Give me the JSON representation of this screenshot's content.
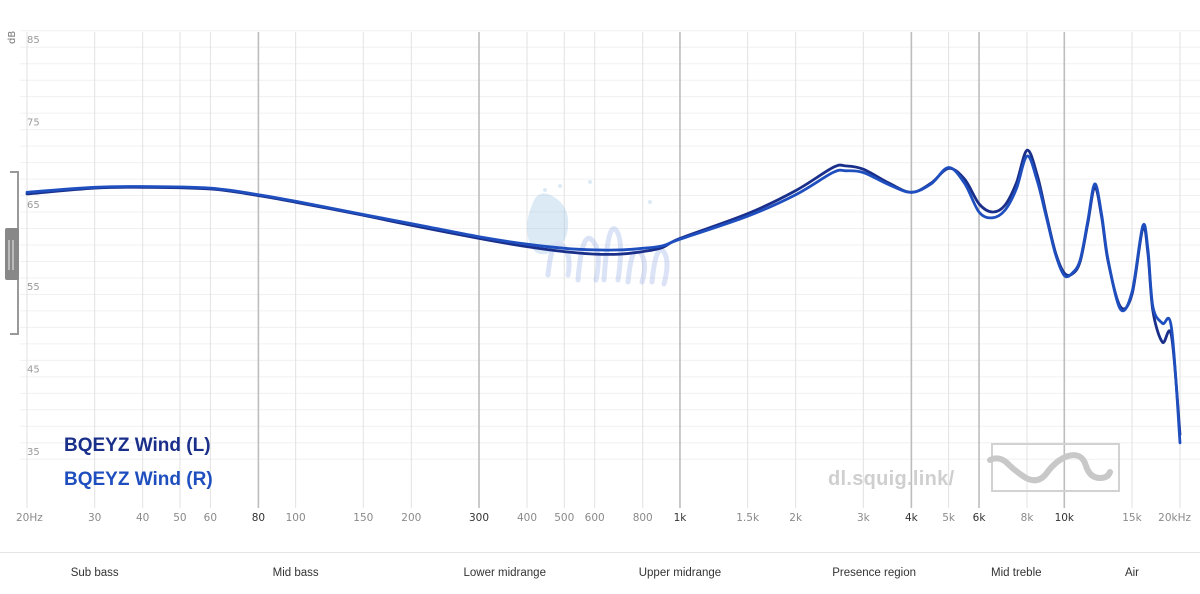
{
  "chart_data": {
    "type": "line",
    "title": "",
    "xlabel": "",
    "ylabel": "dB",
    "x_scale": "log",
    "xlim": [
      20,
      20000
    ],
    "ylim": [
      32,
      86
    ],
    "y_ticks": [
      {
        "value": 85,
        "label": "85"
      },
      {
        "value": 75,
        "label": "75"
      },
      {
        "value": 65,
        "label": "65"
      },
      {
        "value": 55,
        "label": "55"
      },
      {
        "value": 45,
        "label": "45"
      },
      {
        "value": 35,
        "label": "35"
      }
    ],
    "x_ticks": [
      {
        "value": 20,
        "label": "20Hz"
      },
      {
        "value": 30,
        "label": "30"
      },
      {
        "value": 40,
        "label": "40"
      },
      {
        "value": 50,
        "label": "50"
      },
      {
        "value": 60,
        "label": "60"
      },
      {
        "value": 80,
        "label": "80",
        "major": true
      },
      {
        "value": 100,
        "label": "100"
      },
      {
        "value": 150,
        "label": "150"
      },
      {
        "value": 200,
        "label": "200"
      },
      {
        "value": 300,
        "label": "300",
        "major": true
      },
      {
        "value": 400,
        "label": "400"
      },
      {
        "value": 500,
        "label": "500"
      },
      {
        "value": 600,
        "label": "600"
      },
      {
        "value": 800,
        "label": "800"
      },
      {
        "value": 1000,
        "label": "1k",
        "major": true
      },
      {
        "value": 1500,
        "label": "1.5k"
      },
      {
        "value": 2000,
        "label": "2k"
      },
      {
        "value": 3000,
        "label": "3k"
      },
      {
        "value": 4000,
        "label": "4k",
        "major": true
      },
      {
        "value": 5000,
        "label": "5k"
      },
      {
        "value": 6000,
        "label": "6k",
        "major": true
      },
      {
        "value": 8000,
        "label": "8k"
      },
      {
        "value": 10000,
        "label": "10k",
        "major": true
      },
      {
        "value": 15000,
        "label": "15k"
      },
      {
        "value": 20000,
        "label": "20kHz"
      }
    ],
    "grid": true,
    "legend_position": "bottom-left",
    "series": [
      {
        "name": "BQEYZ Wind (L)",
        "color": "#1a2f8a",
        "points": [
          [
            20,
            66.2
          ],
          [
            30,
            66.9
          ],
          [
            40,
            67.0
          ],
          [
            60,
            66.8
          ],
          [
            80,
            66.0
          ],
          [
            100,
            65.2
          ],
          [
            150,
            63.6
          ],
          [
            200,
            62.4
          ],
          [
            300,
            60.8
          ],
          [
            400,
            59.8
          ],
          [
            500,
            59.2
          ],
          [
            600,
            58.9
          ],
          [
            700,
            58.9
          ],
          [
            800,
            59.2
          ],
          [
            900,
            59.7
          ],
          [
            1000,
            60.8
          ],
          [
            1500,
            63.8
          ],
          [
            2000,
            66.6
          ],
          [
            2500,
            69.4
          ],
          [
            2700,
            69.6
          ],
          [
            3000,
            69.2
          ],
          [
            3500,
            67.5
          ],
          [
            4000,
            66.4
          ],
          [
            4500,
            67.5
          ],
          [
            5000,
            69.3
          ],
          [
            5500,
            68.0
          ],
          [
            6000,
            65.0
          ],
          [
            6500,
            64.0
          ],
          [
            7000,
            64.8
          ],
          [
            7500,
            67.5
          ],
          [
            8000,
            71.5
          ],
          [
            8500,
            68.5
          ],
          [
            9000,
            63.5
          ],
          [
            9500,
            59.0
          ],
          [
            10000,
            56.6
          ],
          [
            10500,
            56.5
          ],
          [
            11000,
            58.0
          ],
          [
            11500,
            62.5
          ],
          [
            12000,
            67.0
          ],
          [
            12500,
            63.5
          ],
          [
            13000,
            58.0
          ],
          [
            14000,
            52.5
          ],
          [
            15000,
            54.0
          ],
          [
            16000,
            62.0
          ],
          [
            16500,
            59.0
          ],
          [
            17000,
            52.0
          ],
          [
            18000,
            48.2
          ],
          [
            19000,
            49.0
          ],
          [
            20000,
            37.0
          ]
        ]
      },
      {
        "name": "BQEYZ Wind (R)",
        "color": "#1f4fbf",
        "points": [
          [
            20,
            66.4
          ],
          [
            30,
            67.0
          ],
          [
            40,
            67.1
          ],
          [
            60,
            66.9
          ],
          [
            80,
            66.1
          ],
          [
            100,
            65.3
          ],
          [
            150,
            63.7
          ],
          [
            200,
            62.6
          ],
          [
            300,
            61.0
          ],
          [
            400,
            60.1
          ],
          [
            500,
            59.6
          ],
          [
            600,
            59.4
          ],
          [
            700,
            59.4
          ],
          [
            800,
            59.6
          ],
          [
            900,
            59.9
          ],
          [
            1000,
            60.7
          ],
          [
            1500,
            63.5
          ],
          [
            2000,
            66.1
          ],
          [
            2500,
            68.8
          ],
          [
            2700,
            69.0
          ],
          [
            3000,
            68.8
          ],
          [
            3500,
            67.3
          ],
          [
            4000,
            66.4
          ],
          [
            4500,
            67.4
          ],
          [
            5000,
            69.4
          ],
          [
            5500,
            67.5
          ],
          [
            6000,
            64.0
          ],
          [
            6500,
            63.3
          ],
          [
            7000,
            64.2
          ],
          [
            7500,
            66.8
          ],
          [
            8000,
            70.8
          ],
          [
            8500,
            67.8
          ],
          [
            9000,
            63.2
          ],
          [
            9500,
            58.8
          ],
          [
            10000,
            56.3
          ],
          [
            10500,
            56.6
          ],
          [
            11000,
            58.2
          ],
          [
            11500,
            62.8
          ],
          [
            12000,
            67.4
          ],
          [
            12500,
            63.8
          ],
          [
            13000,
            58.2
          ],
          [
            14000,
            52.2
          ],
          [
            15000,
            54.3
          ],
          [
            16000,
            62.3
          ],
          [
            16500,
            59.5
          ],
          [
            17000,
            52.5
          ],
          [
            18000,
            50.5
          ],
          [
            19000,
            50.0
          ],
          [
            20000,
            36.0
          ]
        ]
      }
    ]
  },
  "legend": {
    "left_label": "BQEYZ Wind (L)",
    "right_label": "BQEYZ Wind (R)",
    "left_color": "#1a2f8a",
    "right_color": "#1f4fbf"
  },
  "watermark": {
    "text": "dl.squig.link/"
  },
  "regions": [
    {
      "label": "Sub bass",
      "freq": 30
    },
    {
      "label": "Mid bass",
      "freq": 100
    },
    {
      "label": "Lower midrange",
      "freq": 350
    },
    {
      "label": "Upper midrange",
      "freq": 1000
    },
    {
      "label": "Presence region",
      "freq": 3200
    },
    {
      "label": "Mid treble",
      "freq": 7500
    },
    {
      "label": "Air",
      "freq": 15000
    }
  ]
}
